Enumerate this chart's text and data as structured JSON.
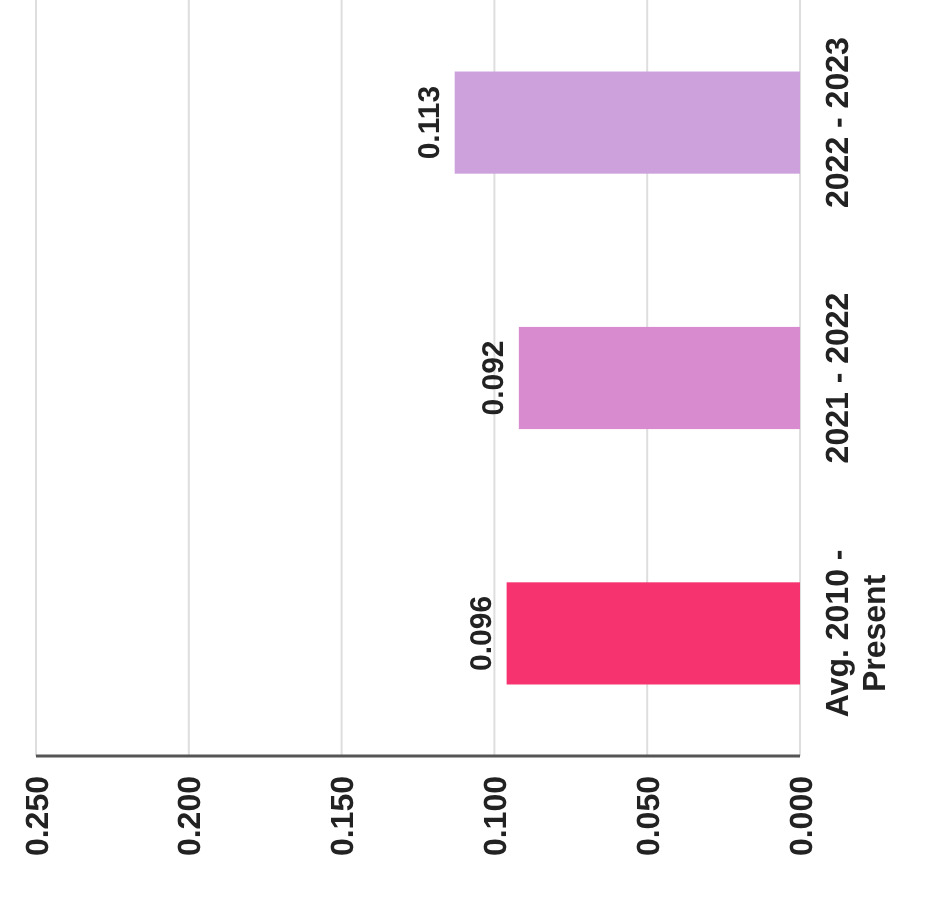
{
  "chart_data": {
    "type": "bar",
    "orientation": "horizontal",
    "categories": [
      "2022 - 2023",
      "2021 - 2022",
      "Avg. 2010 - Present"
    ],
    "values": [
      0.113,
      0.092,
      0.096
    ],
    "colors": [
      "#cda2dc",
      "#d98bd0",
      "#f7336f"
    ],
    "xlim": [
      0.25,
      0
    ],
    "xticks": [
      {
        "value": 0.25,
        "label": "0.250"
      },
      {
        "value": 0.2,
        "label": "0.200"
      },
      {
        "value": 0.15,
        "label": "0.150"
      },
      {
        "value": 0.1,
        "label": "0.100"
      },
      {
        "value": 0.05,
        "label": "0.050"
      },
      {
        "value": 0,
        "label": "0.000"
      }
    ],
    "grid": "x",
    "data_labels": true
  }
}
